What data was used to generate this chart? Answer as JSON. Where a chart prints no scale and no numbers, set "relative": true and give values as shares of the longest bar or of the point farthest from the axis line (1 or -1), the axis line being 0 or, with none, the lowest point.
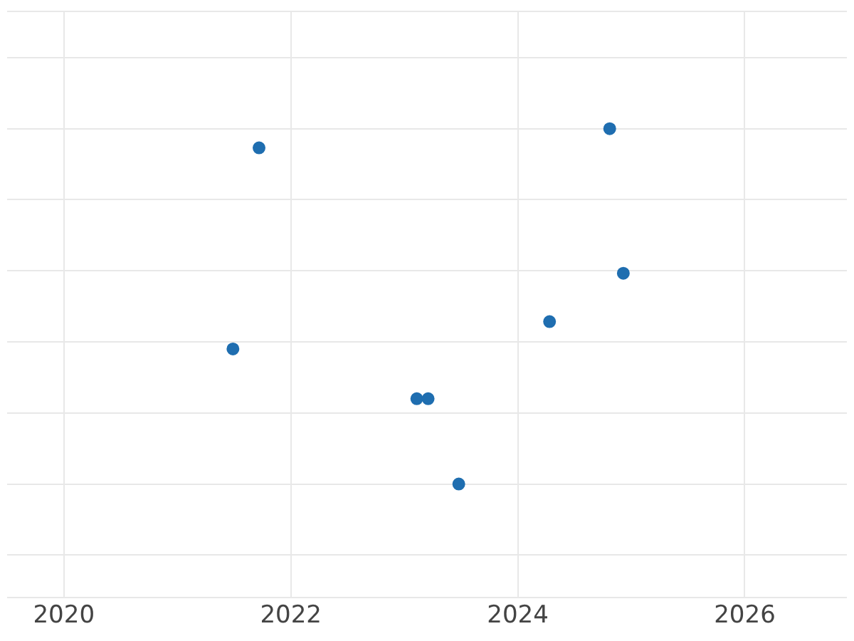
{
  "chart_data": {
    "type": "scatter",
    "relative": true,
    "x": [
      2021.49,
      2021.72,
      2023.11,
      2023.21,
      2023.48,
      2024.28,
      2024.81,
      2024.93
    ],
    "series": [
      {
        "color": "#1f6eb0",
        "values": [
          0.38,
          0.946,
          0.24,
          0.24,
          0,
          0.457,
          1,
          0.593
        ]
      }
    ],
    "xlim": [
      2019.5,
      2026.9
    ],
    "xticks": [
      2020,
      2022,
      2024,
      2026
    ],
    "grid": true,
    "legend": false,
    "marker": "circle"
  }
}
